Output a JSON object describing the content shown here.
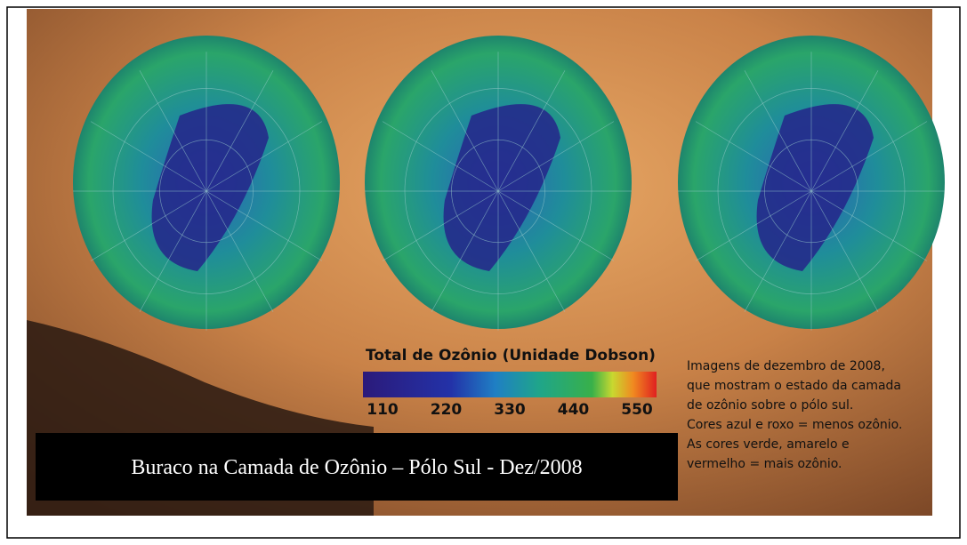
{
  "image": {
    "colorbar": {
      "title": "Total de Ozônio (Unidade Dobson)",
      "ticks": [
        110,
        220,
        330,
        440,
        550
      ]
    },
    "caption": [
      "Imagens de dezembro de 2008,",
      "que mostram o estado da camada",
      "de ozônio sobre o pólo sul.",
      "Cores azul e roxo = menos ozônio.",
      "As cores verde, amarelo e",
      "vermelho = mais ozônio."
    ],
    "label": "Buraco na Camada de Ozônio – Pólo Sul - Dez/2008"
  }
}
